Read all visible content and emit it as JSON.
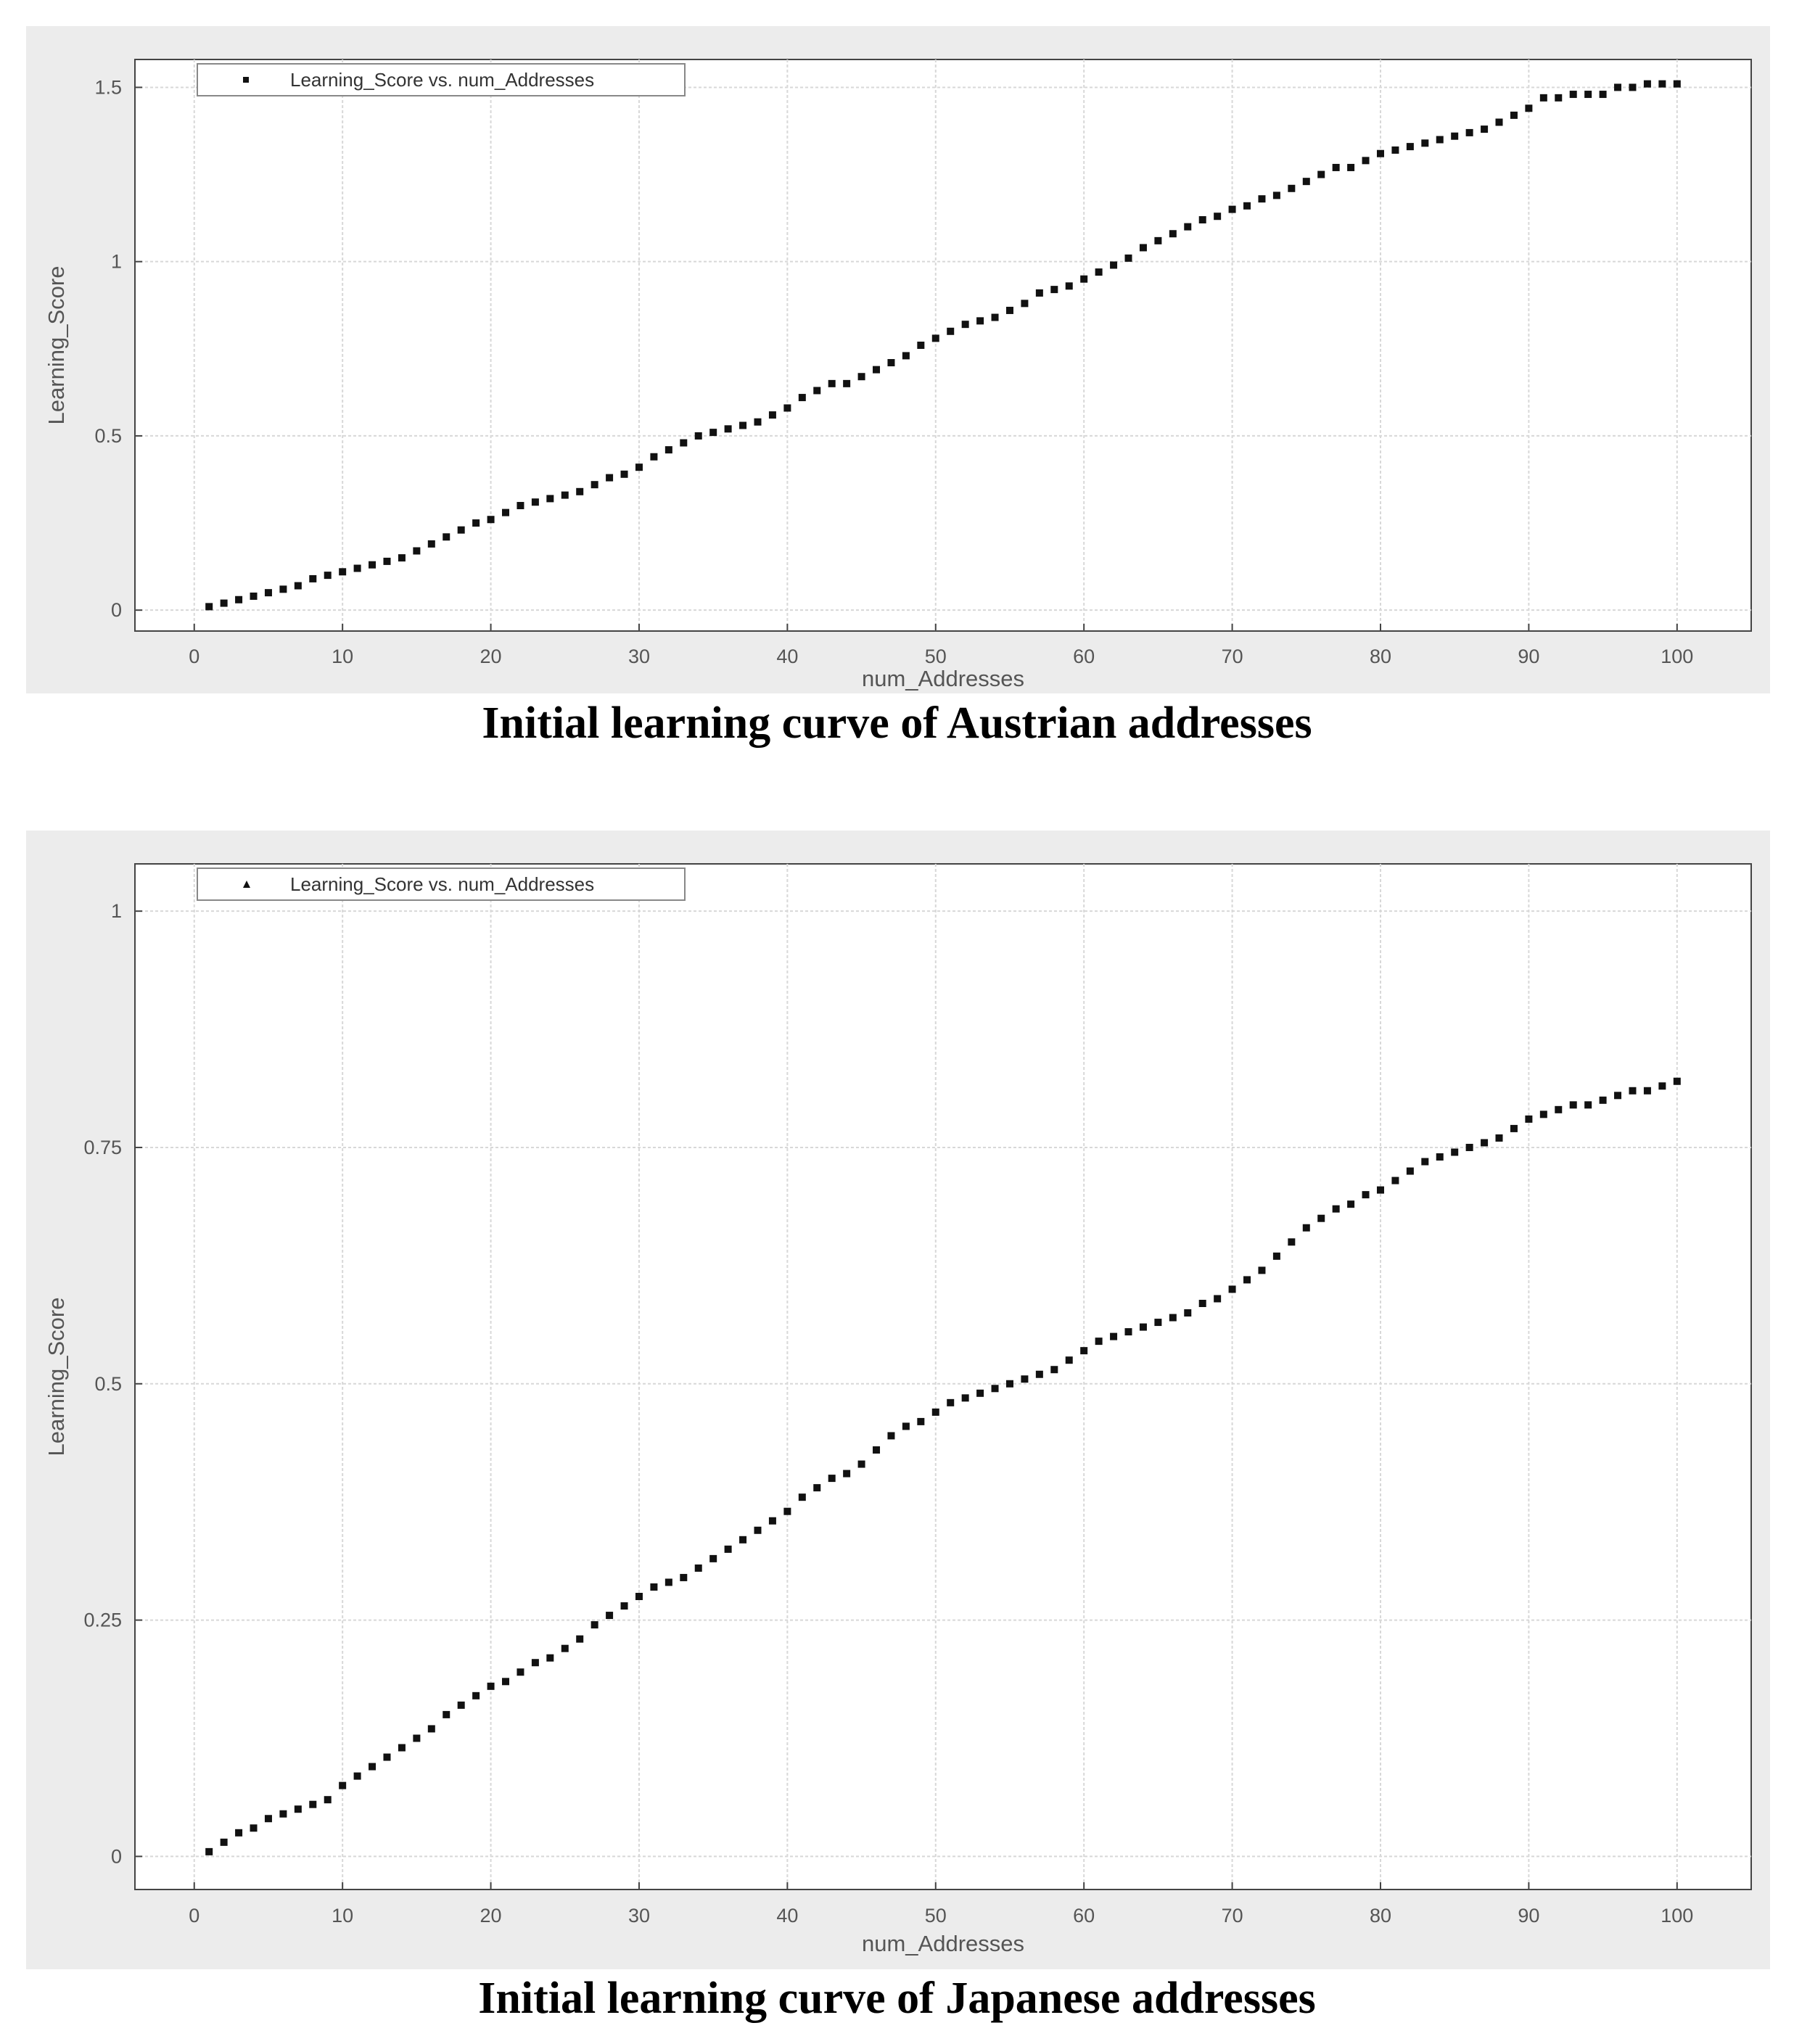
{
  "figure": {
    "captions": [
      "Initial learning curve of Austrian addresses",
      "Initial learning curve of Japanese addresses"
    ]
  },
  "colors": {
    "marker": "#111111",
    "grid": "#d8d8d8",
    "frame_bg": "#ececec",
    "axes": "#444444"
  },
  "chart_data": [
    {
      "type": "scatter",
      "caption": "Initial learning curve of Austrian addresses",
      "xlabel": "num_Addresses",
      "ylabel": "Learning_Score",
      "xlim": [
        -4,
        105
      ],
      "ylim": [
        -0.06,
        1.58
      ],
      "xticks": [
        0,
        10,
        20,
        30,
        40,
        50,
        60,
        70,
        80,
        90,
        100
      ],
      "yticks": [
        0,
        0.5,
        1,
        1.5
      ],
      "ytick_labels": [
        "0",
        "0.5",
        "1",
        "1.5"
      ],
      "grid": true,
      "legend": {
        "position": "top-left",
        "label": "Learning_Score vs. num_Addresses",
        "marker": "square"
      },
      "series": [
        {
          "name": "Learning_Score vs. num_Addresses",
          "x": [
            1,
            2,
            3,
            4,
            5,
            6,
            7,
            8,
            9,
            10,
            11,
            12,
            13,
            14,
            15,
            16,
            17,
            18,
            19,
            20,
            21,
            22,
            23,
            24,
            25,
            26,
            27,
            28,
            29,
            30,
            31,
            32,
            33,
            34,
            35,
            36,
            37,
            38,
            39,
            40,
            41,
            42,
            43,
            44,
            45,
            46,
            47,
            48,
            49,
            50,
            51,
            52,
            53,
            54,
            55,
            56,
            57,
            58,
            59,
            60,
            61,
            62,
            63,
            64,
            65,
            66,
            67,
            68,
            69,
            70,
            71,
            72,
            73,
            74,
            75,
            76,
            77,
            78,
            79,
            80,
            81,
            82,
            83,
            84,
            85,
            86,
            87,
            88,
            89,
            90,
            91,
            92,
            93,
            94,
            95,
            96,
            97,
            98,
            99,
            100
          ],
          "y": [
            0.01,
            0.02,
            0.03,
            0.04,
            0.05,
            0.06,
            0.07,
            0.09,
            0.1,
            0.11,
            0.12,
            0.13,
            0.14,
            0.15,
            0.17,
            0.19,
            0.21,
            0.23,
            0.25,
            0.26,
            0.28,
            0.3,
            0.31,
            0.32,
            0.33,
            0.34,
            0.36,
            0.38,
            0.39,
            0.41,
            0.44,
            0.46,
            0.48,
            0.5,
            0.51,
            0.52,
            0.53,
            0.54,
            0.56,
            0.58,
            0.61,
            0.63,
            0.65,
            0.65,
            0.67,
            0.69,
            0.71,
            0.73,
            0.76,
            0.78,
            0.8,
            0.82,
            0.83,
            0.84,
            0.86,
            0.88,
            0.91,
            0.92,
            0.93,
            0.95,
            0.97,
            0.99,
            1.01,
            1.04,
            1.06,
            1.08,
            1.1,
            1.12,
            1.13,
            1.15,
            1.16,
            1.18,
            1.19,
            1.21,
            1.23,
            1.25,
            1.27,
            1.27,
            1.29,
            1.31,
            1.32,
            1.33,
            1.34,
            1.35,
            1.36,
            1.37,
            1.38,
            1.4,
            1.42,
            1.44,
            1.47,
            1.47,
            1.48,
            1.48,
            1.48,
            1.5,
            1.5,
            1.51,
            1.51,
            1.51
          ]
        }
      ]
    },
    {
      "type": "scatter",
      "caption": "Initial learning curve of Japanese addresses",
      "xlabel": "num_Addresses",
      "ylabel": "Learning_Score",
      "xlim": [
        -4,
        105
      ],
      "ylim": [
        -0.035,
        1.05
      ],
      "xticks": [
        0,
        10,
        20,
        30,
        40,
        50,
        60,
        70,
        80,
        90,
        100
      ],
      "yticks": [
        0,
        0.25,
        0.5,
        0.75,
        1
      ],
      "ytick_labels": [
        "0",
        "0.25",
        "0.5",
        "0.75",
        "1"
      ],
      "grid": true,
      "legend": {
        "position": "top-left",
        "label": "Learning_Score vs. num_Addresses",
        "marker": "triangle"
      },
      "series": [
        {
          "name": "Learning_Score vs. num_Addresses",
          "x": [
            1,
            2,
            3,
            4,
            5,
            6,
            7,
            8,
            9,
            10,
            11,
            12,
            13,
            14,
            15,
            16,
            17,
            18,
            19,
            20,
            21,
            22,
            23,
            24,
            25,
            26,
            27,
            28,
            29,
            30,
            31,
            32,
            33,
            34,
            35,
            36,
            37,
            38,
            39,
            40,
            41,
            42,
            43,
            44,
            45,
            46,
            47,
            48,
            49,
            50,
            51,
            52,
            53,
            54,
            55,
            56,
            57,
            58,
            59,
            60,
            61,
            62,
            63,
            64,
            65,
            66,
            67,
            68,
            69,
            70,
            71,
            72,
            73,
            74,
            75,
            76,
            77,
            78,
            79,
            80,
            81,
            82,
            83,
            84,
            85,
            86,
            87,
            88,
            89,
            90,
            91,
            92,
            93,
            94,
            95,
            96,
            97,
            98,
            99,
            100
          ],
          "y": [
            0.005,
            0.015,
            0.025,
            0.03,
            0.04,
            0.045,
            0.05,
            0.055,
            0.06,
            0.075,
            0.085,
            0.095,
            0.105,
            0.115,
            0.125,
            0.135,
            0.15,
            0.16,
            0.17,
            0.18,
            0.185,
            0.195,
            0.205,
            0.21,
            0.22,
            0.23,
            0.245,
            0.255,
            0.265,
            0.275,
            0.285,
            0.29,
            0.295,
            0.305,
            0.315,
            0.325,
            0.335,
            0.345,
            0.355,
            0.365,
            0.38,
            0.39,
            0.4,
            0.405,
            0.415,
            0.43,
            0.445,
            0.455,
            0.46,
            0.47,
            0.48,
            0.485,
            0.49,
            0.495,
            0.5,
            0.505,
            0.51,
            0.515,
            0.525,
            0.535,
            0.545,
            0.55,
            0.555,
            0.56,
            0.565,
            0.57,
            0.575,
            0.585,
            0.59,
            0.6,
            0.61,
            0.62,
            0.635,
            0.65,
            0.665,
            0.675,
            0.685,
            0.69,
            0.7,
            0.705,
            0.715,
            0.725,
            0.735,
            0.74,
            0.745,
            0.75,
            0.755,
            0.76,
            0.77,
            0.78,
            0.785,
            0.79,
            0.795,
            0.795,
            0.8,
            0.805,
            0.81,
            0.81,
            0.815,
            0.82
          ]
        }
      ]
    }
  ]
}
